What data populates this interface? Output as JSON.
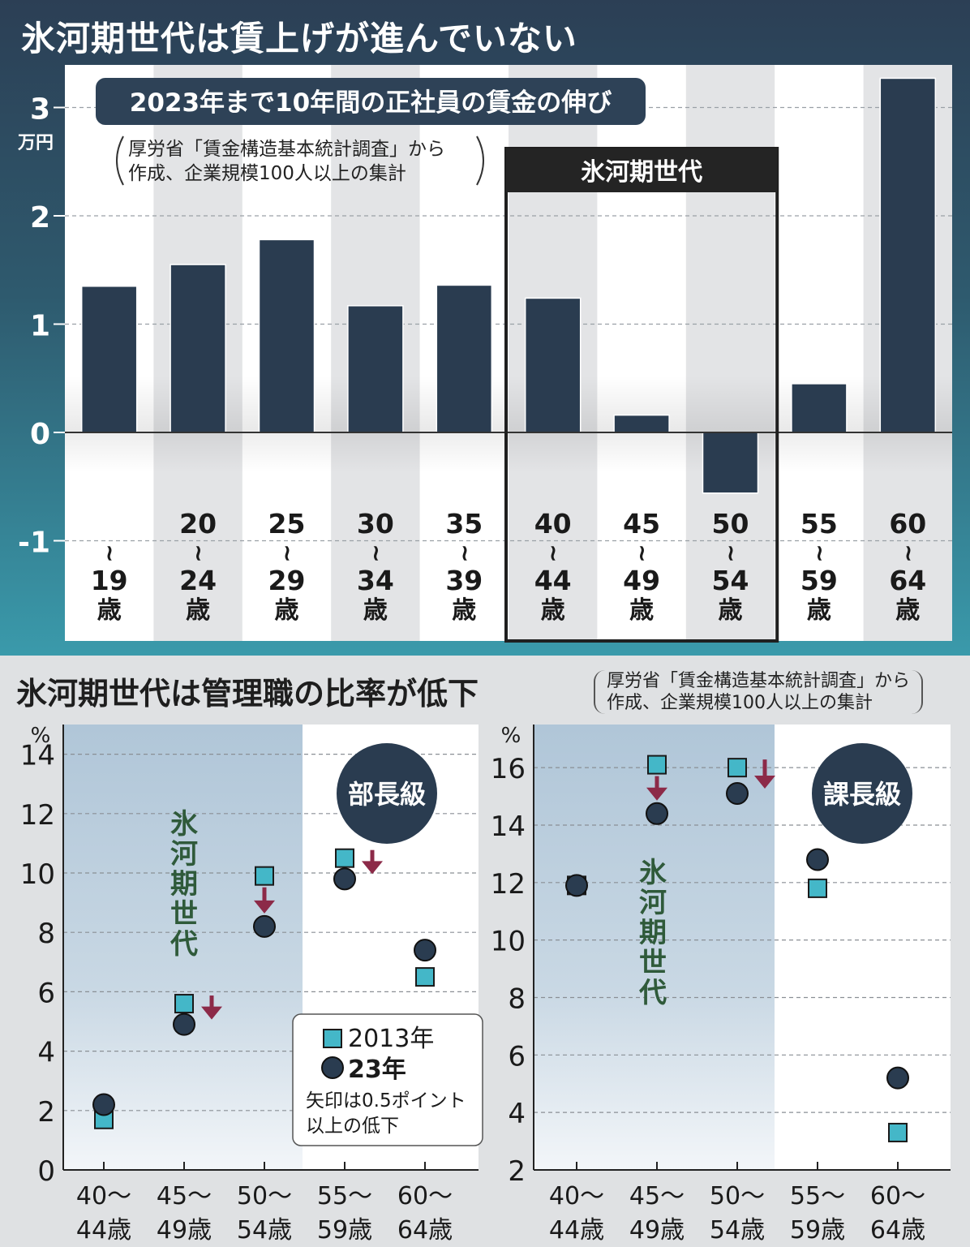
{
  "top": {
    "title": "氷河期世代は賃上げが進んでいない",
    "subtitle": "2023年まで10年間の正社員の賃金の伸び",
    "source_line1": "厚労省「賃金構造基本統計調査」から",
    "source_line2": "作成、企業規模100人以上の集計",
    "unit": "万円",
    "highlight_label": "氷河期世代"
  },
  "bottom": {
    "title": "氷河期世代は管理職の比率が低下",
    "source_line1": "厚労省「賃金構造基本統計調査」から",
    "source_line2": "作成、企業規模100人以上の集計",
    "legend": {
      "s2013": "2013年",
      "s2023": "23年",
      "note_line1": "矢印は0.5ポイント",
      "note_line2": "以上の低下"
    },
    "shade_label": "氷河期世代"
  },
  "chart_data": [
    {
      "type": "bar",
      "title": "2023年まで10年間の正社員の賃金の伸び",
      "ylabel": "万円",
      "ylim": [
        -1.9,
        3.3
      ],
      "yticks": [
        3,
        2,
        1,
        0,
        -1
      ],
      "categories": [
        {
          "top": "",
          "bottom": "19",
          "unit": "歳"
        },
        {
          "top": "20",
          "bottom": "24",
          "unit": "歳"
        },
        {
          "top": "25",
          "bottom": "29",
          "unit": "歳"
        },
        {
          "top": "30",
          "bottom": "34",
          "unit": "歳"
        },
        {
          "top": "35",
          "bottom": "39",
          "unit": "歳"
        },
        {
          "top": "40",
          "bottom": "44",
          "unit": "歳"
        },
        {
          "top": "45",
          "bottom": "49",
          "unit": "歳"
        },
        {
          "top": "50",
          "bottom": "54",
          "unit": "歳"
        },
        {
          "top": "55",
          "bottom": "59",
          "unit": "歳"
        },
        {
          "top": "60",
          "bottom": "64",
          "unit": "歳"
        }
      ],
      "values": [
        1.35,
        1.55,
        1.78,
        1.17,
        1.36,
        1.24,
        0.16,
        -0.56,
        0.45,
        3.27
      ],
      "highlight": {
        "label": "氷河期世代",
        "from_index": 5,
        "to_index": 7
      },
      "bar_color": "#2a3c50"
    },
    {
      "type": "scatter",
      "title": "部長級",
      "ylabel": "%",
      "ylim": [
        0,
        15
      ],
      "yticks": [
        0,
        2,
        4,
        6,
        8,
        10,
        12,
        14
      ],
      "categories": [
        [
          "40～",
          "44歳"
        ],
        [
          "45～",
          "49歳"
        ],
        [
          "50～",
          "54歳"
        ],
        [
          "55～",
          "59歳"
        ],
        [
          "60～",
          "64歳"
        ]
      ],
      "series": [
        {
          "name": "2013年",
          "values": [
            1.7,
            5.6,
            9.9,
            10.5,
            6.5
          ]
        },
        {
          "name": "23年",
          "values": [
            2.2,
            4.9,
            8.2,
            9.8,
            7.4
          ]
        }
      ],
      "arrows": [
        1,
        2,
        3
      ],
      "shade": {
        "label": "氷河期世代",
        "categories": [
          0,
          1,
          2
        ]
      }
    },
    {
      "type": "scatter",
      "title": "課長級",
      "ylabel": "%",
      "ylim": [
        2,
        17.5
      ],
      "yticks": [
        2,
        4,
        6,
        8,
        10,
        12,
        14,
        16
      ],
      "categories": [
        [
          "40～",
          "44歳"
        ],
        [
          "45～",
          "49歳"
        ],
        [
          "50～",
          "54歳"
        ],
        [
          "55～",
          "59歳"
        ],
        [
          "60～",
          "64歳"
        ]
      ],
      "series": [
        {
          "name": "2013年",
          "values": [
            11.9,
            16.1,
            16.0,
            11.8,
            3.3
          ]
        },
        {
          "name": "23年",
          "values": [
            11.9,
            14.4,
            15.1,
            12.8,
            5.2
          ]
        }
      ],
      "arrows": [
        1,
        2
      ],
      "shade": {
        "label": "氷河期世代",
        "categories": [
          0,
          1,
          2
        ]
      }
    }
  ]
}
